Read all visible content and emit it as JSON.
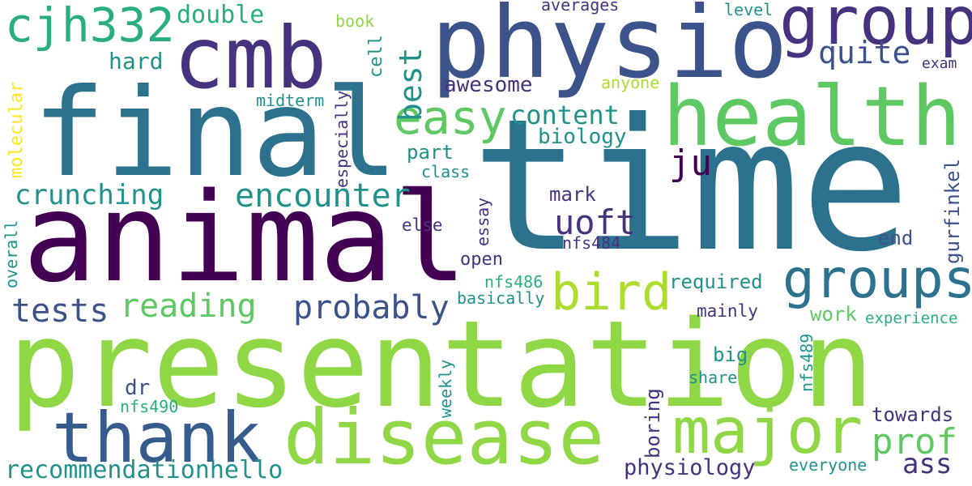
{
  "words": {
    "time": "time",
    "presentation": "presentation",
    "animal": "animal",
    "final": "final",
    "physio": "physio",
    "cmb": "cmb",
    "health": "health",
    "disease": "disease",
    "group": "group",
    "thank": "thank",
    "major": "major",
    "groups": "groups",
    "cjh332": "cjh332",
    "bird": "bird",
    "easy": "easy",
    "uoft": "uoft",
    "probably": "probably",
    "encounter": "encounter",
    "reading": "reading",
    "tests": "tests",
    "crunching": "crunching",
    "prof": "prof",
    "best": "best",
    "quite": "quite",
    "content": "content",
    "ju": "ju",
    "recommendationhello": "recommendationhello",
    "ass": "ass",
    "physiology": "physiology",
    "double": "double",
    "hard": "hard",
    "awesome": "awesome",
    "biology": "biology",
    "mark": "mark",
    "part": "part",
    "class": "class",
    "else": "else",
    "open": "open",
    "nfs484": "nfs484",
    "nfs486": "nfs486",
    "basically": "basically",
    "required": "required",
    "mainly": "mainly",
    "work": "work",
    "experience": "experience",
    "end": "end",
    "big": "big",
    "share": "share",
    "towards": "towards",
    "everyone": "everyone",
    "dr": "dr",
    "nfs490": "nfs490",
    "midterm": "midterm",
    "book": "book",
    "averages": "averages",
    "level": "level",
    "exam": "exam",
    "anyone": "anyone",
    "molecular": "molecular",
    "especially": "especially",
    "cell": "cell",
    "essay": "essay",
    "gurfinkel": "gurfinkel",
    "overall": "overall",
    "weekly": "weekly",
    "boring": "boring",
    "nfs489": "nfs489"
  },
  "colors": {
    "dark_purple": "#440154",
    "purple": "#46327e",
    "indigo": "#3b528b",
    "slate_blue": "#365c8d",
    "teal_blue": "#2c728e",
    "teal": "#21918c",
    "sea_green": "#28ae80",
    "green": "#5ec962",
    "light_green": "#8fd744",
    "lime": "#addc30",
    "yellow": "#fde725"
  }
}
